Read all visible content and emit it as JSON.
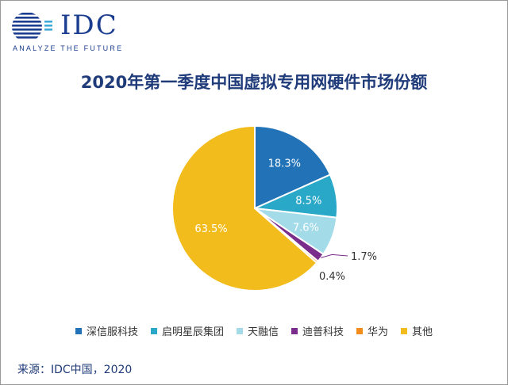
{
  "logo": {
    "brand": "IDC",
    "tagline": "ANALYZE THE FUTURE"
  },
  "chart_data": {
    "type": "pie",
    "title": "2020年第一季度中国虚拟专用网硬件市场份额",
    "categories": [
      "深信服科技",
      "启明星辰集团",
      "天融信",
      "迪普科技",
      "华为",
      "其他"
    ],
    "values": [
      18.3,
      8.5,
      7.6,
      1.7,
      0.4,
      63.5
    ],
    "labels": [
      "18.3%",
      "8.5%",
      "7.6%",
      "1.7%",
      "0.4%",
      "63.5%"
    ],
    "colors": [
      "#2272b8",
      "#2aa8c8",
      "#a3dbe8",
      "#7b2d8b",
      "#f28c1c",
      "#f2bc1c"
    ],
    "legend_position": "bottom"
  },
  "source": "来源：IDC中国，2020"
}
